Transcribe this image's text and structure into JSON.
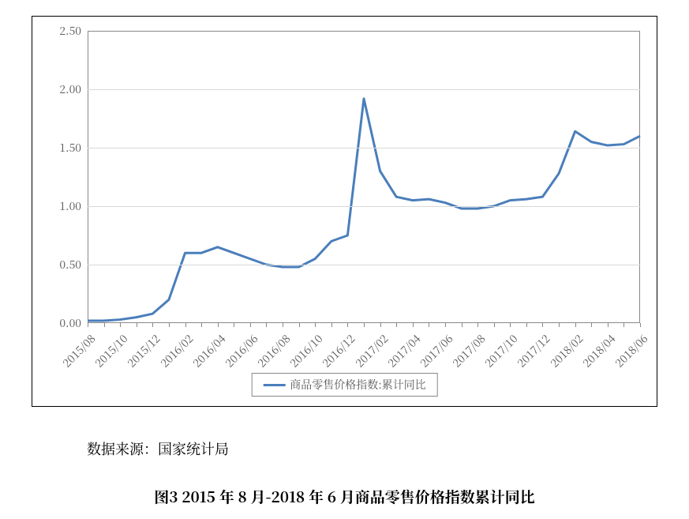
{
  "chart": {
    "type": "line",
    "background_color": "#ffffff",
    "frame_border_color": "#000000",
    "plot_border_color": "#888888",
    "grid_color": "#d9d9d9",
    "tick_label_color": "#5a5a5a",
    "tick_label_fontsize": 14,
    "ylim": [
      0.0,
      2.5
    ],
    "ytick_step": 0.5,
    "yticks": [
      "0.00",
      "0.50",
      "1.00",
      "1.50",
      "2.00",
      "2.50"
    ],
    "series": {
      "name": "商品零售价格指数:累计同比",
      "line_color": "#4a7ebb",
      "line_width": 3,
      "x": [
        "2015/08",
        "2015/09",
        "2015/10",
        "2015/11",
        "2015/12",
        "2016/01",
        "2016/02",
        "2016/03",
        "2016/04",
        "2016/05",
        "2016/06",
        "2016/07",
        "2016/08",
        "2016/09",
        "2016/10",
        "2016/11",
        "2016/12",
        "2017/01",
        "2017/02",
        "2017/03",
        "2017/04",
        "2017/05",
        "2017/06",
        "2017/07",
        "2017/08",
        "2017/09",
        "2017/10",
        "2017/11",
        "2017/12",
        "2018/01",
        "2018/02",
        "2018/03",
        "2018/04",
        "2018/05",
        "2018/06"
      ],
      "y": [
        0.02,
        0.02,
        0.03,
        0.05,
        0.08,
        0.2,
        0.6,
        0.6,
        0.65,
        0.6,
        0.55,
        0.5,
        0.48,
        0.48,
        0.55,
        0.7,
        0.75,
        1.92,
        1.3,
        1.08,
        1.05,
        1.06,
        1.03,
        0.98,
        0.98,
        1.0,
        1.05,
        1.06,
        1.08,
        1.28,
        1.64,
        1.55,
        1.52,
        1.53,
        1.6
      ]
    },
    "x_major_labels": [
      "2015/08",
      "2015/10",
      "2015/12",
      "2016/02",
      "2016/04",
      "2016/06",
      "2016/08",
      "2016/10",
      "2016/12",
      "2017/02",
      "2017/04",
      "2017/06",
      "2017/08",
      "2017/10",
      "2017/12",
      "2018/02",
      "2018/04",
      "2018/06"
    ]
  },
  "legend": {
    "label": "商品零售价格指数:累计同比"
  },
  "source_label": "数据来源：国家统计局",
  "caption": "图3 2015 年 8 月-2018 年 6 月商品零售价格指数累计同比"
}
